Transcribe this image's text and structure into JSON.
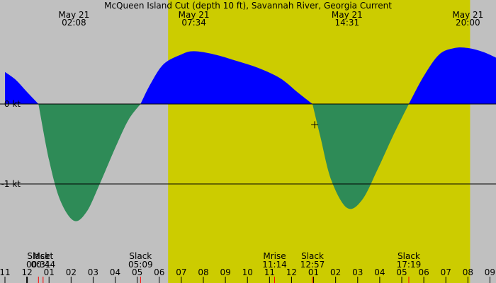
{
  "chart_data": {
    "type": "area",
    "title": "McQueen Island Cut (depth 10 ft), Savannah River, Georgia Current",
    "unit": "kt",
    "y_ticks": [
      {
        "value": 0,
        "label": "0 kt"
      },
      {
        "value": -1,
        "label": "-1 kt"
      }
    ],
    "y_range": [
      -1.75,
      1.45
    ],
    "x_range_hours": [
      -1.0,
      21.5
    ],
    "daylight_hours": [
      6.4,
      20.1
    ],
    "colors": {
      "night": "#c0c0c0",
      "day": "#cccc00",
      "flood": "#0000ff",
      "ebb": "#2e8b57",
      "axis": "#000000",
      "sun_tick": "#ff0000",
      "moon_tick": "#ff0000"
    },
    "hour_ticks": [
      {
        "hour": -1,
        "label": "11"
      },
      {
        "hour": 0,
        "label": "12"
      },
      {
        "hour": 1,
        "label": "01"
      },
      {
        "hour": 2,
        "label": "02"
      },
      {
        "hour": 3,
        "label": "03"
      },
      {
        "hour": 4,
        "label": "04"
      },
      {
        "hour": 5,
        "label": "05"
      },
      {
        "hour": 6,
        "label": "06"
      },
      {
        "hour": 7,
        "label": "07"
      },
      {
        "hour": 8,
        "label": "08"
      },
      {
        "hour": 9,
        "label": "09"
      },
      {
        "hour": 10,
        "label": "10"
      },
      {
        "hour": 11,
        "label": "11"
      },
      {
        "hour": 12,
        "label": "12"
      },
      {
        "hour": 13,
        "label": "01"
      },
      {
        "hour": 14,
        "label": "02"
      },
      {
        "hour": 15,
        "label": "03"
      },
      {
        "hour": 16,
        "label": "04"
      },
      {
        "hour": 17,
        "label": "05"
      },
      {
        "hour": 18,
        "label": "06"
      },
      {
        "hour": 19,
        "label": "07"
      },
      {
        "hour": 20,
        "label": "08"
      },
      {
        "hour": 21,
        "label": "09"
      }
    ],
    "top_labels": [
      {
        "hour": 2.13,
        "date": "May 21",
        "time": "02:08"
      },
      {
        "hour": 7.57,
        "date": "May 21",
        "time": "07:34"
      },
      {
        "hour": 14.52,
        "date": "May 21",
        "time": "14:31"
      },
      {
        "hour": 20.0,
        "date": "May 21",
        "time": "20:00"
      }
    ],
    "bottom_events": [
      {
        "hour": 0.52,
        "name": "Slack",
        "time": "00:31"
      },
      {
        "hour": 0.73,
        "name": "Mset",
        "time": "00:44"
      },
      {
        "hour": 5.15,
        "name": "Slack",
        "time": "05:09"
      },
      {
        "hour": 11.23,
        "name": "Mrise",
        "time": "11:14"
      },
      {
        "hour": 12.95,
        "name": "Slack",
        "time": "12:57"
      },
      {
        "hour": 17.32,
        "name": "Slack",
        "time": "17:19"
      }
    ],
    "curve_segments": [
      {
        "kind": "flood",
        "points": [
          [
            -1.0,
            0.4
          ],
          [
            -0.5,
            0.3
          ],
          [
            0.0,
            0.15
          ],
          [
            0.52,
            0.0
          ]
        ]
      },
      {
        "kind": "ebb",
        "points": [
          [
            0.52,
            0.0
          ],
          [
            1.0,
            -0.7
          ],
          [
            1.5,
            -1.2
          ],
          [
            2.13,
            -1.46
          ],
          [
            2.7,
            -1.35
          ],
          [
            3.3,
            -1.0
          ],
          [
            4.0,
            -0.55
          ],
          [
            4.6,
            -0.2
          ],
          [
            5.15,
            0.0
          ]
        ]
      },
      {
        "kind": "flood",
        "points": [
          [
            5.15,
            0.0
          ],
          [
            5.6,
            0.25
          ],
          [
            6.2,
            0.5
          ],
          [
            7.0,
            0.62
          ],
          [
            7.57,
            0.66
          ],
          [
            8.5,
            0.62
          ],
          [
            9.5,
            0.54
          ],
          [
            10.5,
            0.45
          ],
          [
            11.5,
            0.32
          ],
          [
            12.3,
            0.14
          ],
          [
            12.95,
            0.0
          ]
        ]
      },
      {
        "kind": "ebb",
        "points": [
          [
            12.95,
            0.0
          ],
          [
            13.3,
            -0.4
          ],
          [
            13.8,
            -0.95
          ],
          [
            14.52,
            -1.3
          ],
          [
            15.2,
            -1.2
          ],
          [
            15.9,
            -0.82
          ],
          [
            16.6,
            -0.4
          ],
          [
            17.32,
            0.0
          ]
        ]
      },
      {
        "kind": "flood",
        "points": [
          [
            17.32,
            0.0
          ],
          [
            18.0,
            0.35
          ],
          [
            18.7,
            0.62
          ],
          [
            19.4,
            0.7
          ],
          [
            20.0,
            0.7
          ],
          [
            20.7,
            0.65
          ],
          [
            21.5,
            0.55
          ]
        ]
      }
    ],
    "cursor_marker": {
      "hour": 13.05,
      "value": -0.26
    }
  }
}
